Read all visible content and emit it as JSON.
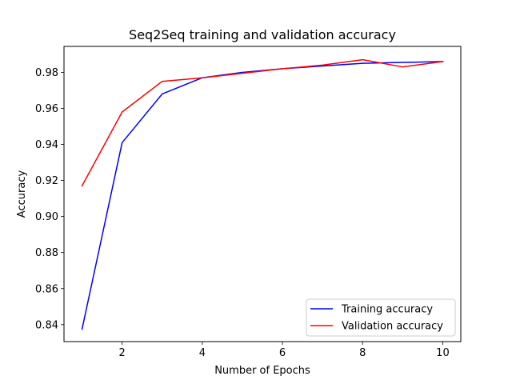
{
  "chart_data": {
    "type": "line",
    "title": "Seq2Seq training and validation accuracy",
    "xlabel": "Number of Epochs",
    "ylabel": "Accuracy",
    "x": [
      1,
      2,
      3,
      4,
      5,
      6,
      7,
      8,
      9,
      10
    ],
    "xlim": [
      0.55,
      10.45
    ],
    "ylim": [
      0.8306,
      0.9944
    ],
    "xticks": [
      2,
      4,
      6,
      8,
      10
    ],
    "xtick_labels": [
      "2",
      "4",
      "6",
      "8",
      "10"
    ],
    "yticks": [
      0.84,
      0.86,
      0.88,
      0.9,
      0.92,
      0.94,
      0.96,
      0.98
    ],
    "ytick_labels": [
      "0.84",
      "0.86",
      "0.88",
      "0.90",
      "0.92",
      "0.94",
      "0.96",
      "0.98"
    ],
    "grid": false,
    "legend_position": "lower-right",
    "series": [
      {
        "name": "Training accuracy",
        "color": "#0000ff",
        "values": [
          0.8375,
          0.941,
          0.968,
          0.977,
          0.98,
          0.982,
          0.9835,
          0.985,
          0.9855,
          0.986
        ]
      },
      {
        "name": "Validation accuracy",
        "color": "#ff0000",
        "values": [
          0.917,
          0.958,
          0.975,
          0.977,
          0.9795,
          0.982,
          0.984,
          0.987,
          0.983,
          0.986
        ]
      }
    ]
  }
}
